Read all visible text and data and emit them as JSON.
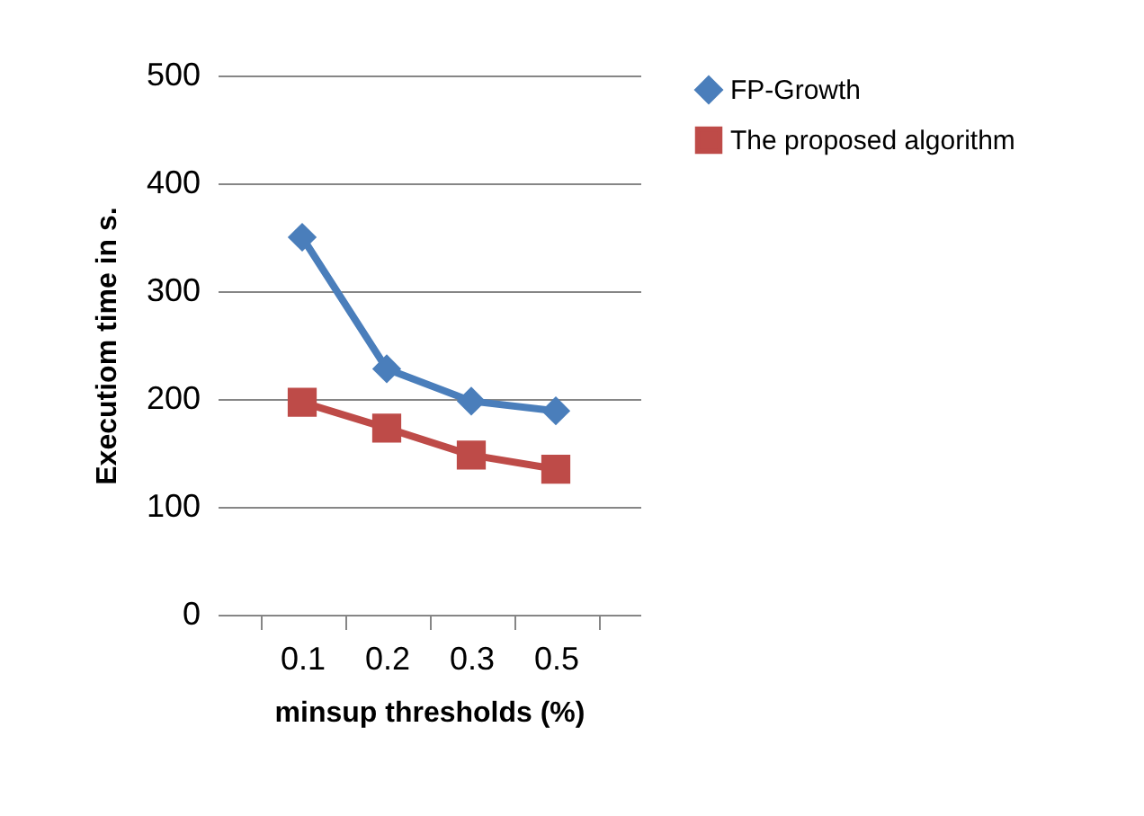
{
  "chart_data": {
    "type": "line",
    "xlabel": "minsup thresholds (%)",
    "ylabel": "Executiom time in s.",
    "categories": [
      "0.1",
      "0.2",
      "0.3",
      "0.5"
    ],
    "series": [
      {
        "name": "FP-Growth",
        "color": "#4a7ebb",
        "marker": "diamond",
        "values": [
          350,
          228,
          198,
          189
        ]
      },
      {
        "name": "The proposed algorithm",
        "color": "#be4b48",
        "marker": "square",
        "values": [
          197,
          173,
          148,
          135
        ]
      }
    ],
    "ylim": [
      0,
      500
    ],
    "yticks": [
      0,
      100,
      200,
      300,
      400,
      500
    ],
    "grid": "y",
    "legend": "right"
  }
}
